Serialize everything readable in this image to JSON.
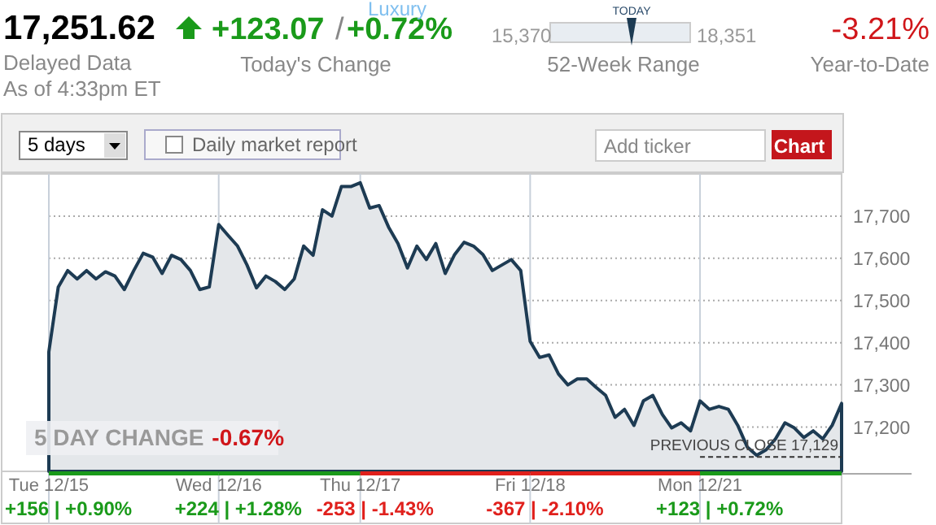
{
  "chart_data": {
    "type": "area",
    "color": "#1d3b53",
    "categories": [
      "Tue 12/15",
      null,
      null,
      null,
      null,
      null,
      null,
      null,
      null,
      null,
      null,
      null,
      null,
      null,
      null,
      null,
      null,
      null,
      "Wed 12/16",
      null,
      null,
      null,
      null,
      null,
      null,
      null,
      null,
      null,
      null,
      null,
      null,
      null,
      null,
      "Thu 12/17",
      null,
      null,
      null,
      null,
      null,
      null,
      null,
      null,
      null,
      null,
      null,
      null,
      null,
      null,
      null,
      null,
      null,
      "Fri 12/18",
      null,
      null,
      null,
      null,
      null,
      null,
      null,
      null,
      null,
      null,
      null,
      null,
      null,
      null,
      null,
      null,
      null,
      "Mon 12/21",
      null,
      null,
      null,
      null,
      null,
      null,
      null,
      null,
      null,
      null,
      null,
      null,
      null,
      null,
      null
    ],
    "ylim": [
      17095,
      17800
    ],
    "yticks": [
      {
        "value": 17200,
        "label": "17,200"
      },
      {
        "value": 17300,
        "label": "17,300"
      },
      {
        "value": 17400,
        "label": "17,400"
      },
      {
        "value": 17500,
        "label": "17,500"
      },
      {
        "value": 17600,
        "label": "17,600"
      },
      {
        "value": 17700,
        "label": "17,700"
      }
    ],
    "grid": true,
    "values": [
      17378,
      17532,
      17571,
      17551,
      17571,
      17551,
      17568,
      17558,
      17526,
      17571,
      17612,
      17603,
      17564,
      17607,
      17597,
      17571,
      17526,
      17532,
      17680,
      17654,
      17629,
      17584,
      17530,
      17558,
      17545,
      17526,
      17551,
      17629,
      17607,
      17715,
      17700,
      17770,
      17770,
      17779,
      17719,
      17725,
      17674,
      17635,
      17577,
      17629,
      17597,
      17635,
      17564,
      17609,
      17638,
      17629,
      17609,
      17571,
      17584,
      17597,
      17571,
      17403,
      17365,
      17371,
      17326,
      17300,
      17314,
      17314,
      17294,
      17275,
      17223,
      17242,
      17204,
      17262,
      17275,
      17230,
      17198,
      17210,
      17191,
      17262,
      17242,
      17249,
      17242,
      17204,
      17153,
      17133,
      17146,
      17172,
      17210,
      17198,
      17175,
      17191,
      17172,
      17204,
      17256
    ],
    "ref_lines": [
      {
        "axis": "y",
        "value": 17129,
        "label": "PREVIOUS CLOSE 17,129",
        "line_style": "dashed"
      }
    ],
    "annotations": [
      "17,251.62",
      "Delayed Data",
      "As of 4:33pm ET",
      "+123.07",
      "/",
      "+0.72%",
      "Today's Change",
      "Luxury",
      "15,370",
      "TODAY",
      "18,351",
      "52-Week Range",
      "-3.21%",
      "Year-to-Date",
      "5 days",
      "Daily market report",
      "Add ticker",
      "Chart",
      "5 DAY CHANGE",
      "-0.67%",
      "+156 | +0.90%",
      "+224 | +1.28%",
      "-253 | -1.43%",
      "-367 | -2.10%",
      "+123 | +0.72%"
    ]
  }
}
